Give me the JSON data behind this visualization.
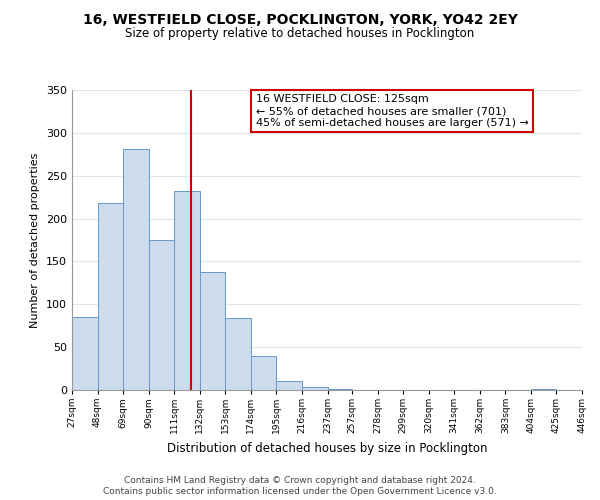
{
  "title": "16, WESTFIELD CLOSE, POCKLINGTON, YORK, YO42 2EY",
  "subtitle": "Size of property relative to detached houses in Pocklington",
  "xlabel": "Distribution of detached houses by size in Pocklington",
  "ylabel": "Number of detached properties",
  "bar_color": "#ccdcec",
  "bar_edge_color": "#6699cc",
  "vline_x": 125,
  "vline_color": "#cc0000",
  "bin_edges": [
    27,
    48,
    69,
    90,
    111,
    132,
    153,
    174,
    195,
    216,
    237,
    257,
    278,
    299,
    320,
    341,
    362,
    383,
    404,
    425,
    446
  ],
  "bin_values": [
    85,
    218,
    281,
    175,
    232,
    138,
    84,
    40,
    11,
    4,
    1,
    0,
    0,
    0,
    0,
    0,
    0,
    0,
    1,
    0
  ],
  "tick_labels": [
    "27sqm",
    "48sqm",
    "69sqm",
    "90sqm",
    "111sqm",
    "132sqm",
    "153sqm",
    "174sqm",
    "195sqm",
    "216sqm",
    "237sqm",
    "257sqm",
    "278sqm",
    "299sqm",
    "320sqm",
    "341sqm",
    "362sqm",
    "383sqm",
    "404sqm",
    "425sqm",
    "446sqm"
  ],
  "annotation_title": "16 WESTFIELD CLOSE: 125sqm",
  "annotation_line1": "← 55% of detached houses are smaller (701)",
  "annotation_line2": "45% of semi-detached houses are larger (571) →",
  "annotation_box_color": "#ffffff",
  "annotation_box_edgecolor": "#cc0000",
  "ylim": [
    0,
    350
  ],
  "yticks": [
    0,
    50,
    100,
    150,
    200,
    250,
    300,
    350
  ],
  "footer1": "Contains HM Land Registry data © Crown copyright and database right 2024.",
  "footer2": "Contains public sector information licensed under the Open Government Licence v3.0.",
  "background_color": "#ffffff",
  "grid_color": "#dce8f0"
}
